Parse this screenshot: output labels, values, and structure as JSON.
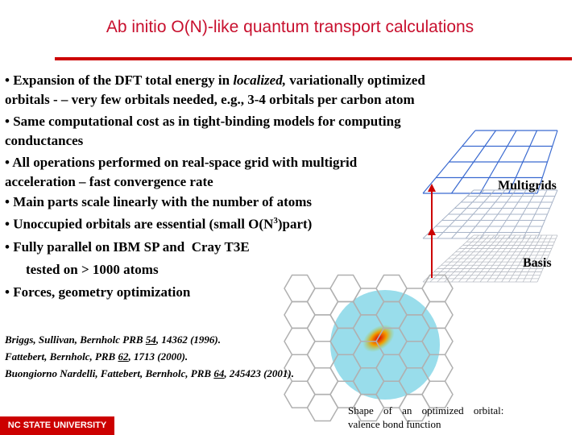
{
  "title": "Ab initio O(N)-like quantum transport calculations",
  "bullets": [
    [
      "• Expansion of the DFT total energy in ",
      "localized,",
      " variationally optimized"
    ],
    [
      "orbitals - – very few orbitals needed, e.g., 3-4 orbitals per carbon atom"
    ],
    [
      "• Same computational cost as in tight-binding models for computing"
    ],
    [
      "conductances"
    ],
    [
      "• All operations performed on real-space grid with multigrid"
    ],
    [
      "acceleration – fast convergence rate"
    ],
    [
      "• Main parts scale linearly with the number of atoms"
    ],
    [
      "• Unoccupied orbitals are essential (small O(N",
      "3",
      ")part)"
    ],
    [
      "• Fully parallel on IBM SP and  Cray T3E"
    ],
    [
      "tested on > 1000 atoms"
    ],
    [
      "• Forces, geometry optimization"
    ]
  ],
  "references": [
    [
      "Briggs, Sullivan, Bernholc PRB ",
      "54",
      ", 14362 (1996)."
    ],
    [
      "Fattebert, Bernholc, PRB ",
      "62",
      ", 1713 (2000)."
    ],
    [
      "Buongiorno Nardelli, Fattebert, Bernholc, PRB ",
      "64",
      ", 245423 (2001)."
    ]
  ],
  "figure": {
    "labels": [
      "Multigrids",
      "Basis"
    ],
    "caption": [
      "Shape of an optimized orbital:",
      "valence bond function"
    ]
  },
  "footer": {
    "logo": "NC STATE UNIVERSITY"
  }
}
